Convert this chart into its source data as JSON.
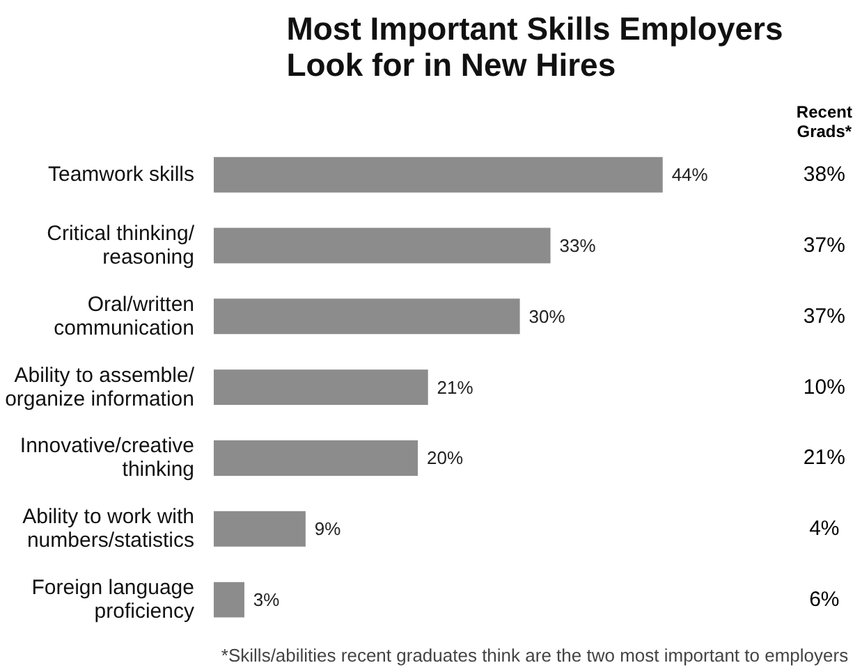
{
  "chart_data": {
    "type": "bar",
    "orientation": "horizontal",
    "title": "Most Important Skills Employers\nLook for in New Hires",
    "categories": [
      "Teamwork skills",
      "Critical thinking/\nreasoning",
      "Oral/written\ncommunication",
      "Ability to assemble/\norganize information",
      "Innovative/creative\nthinking",
      "Ability to work with\nnumbers/statistics",
      "Foreign language\nproficiency"
    ],
    "values": [
      44,
      33,
      30,
      21,
      20,
      9,
      3
    ],
    "color": "#8c8c8c",
    "value_labels": [
      "44%",
      "33%",
      "30%",
      "21%",
      "20%",
      "9%",
      "3%"
    ],
    "annotations": [
      "Recent\nGrads*",
      "38%",
      "37%",
      "37%",
      "10%",
      "21%",
      "4%",
      "6%",
      "*Skills/abilities recent graduates think are the two most important to employers"
    ]
  }
}
